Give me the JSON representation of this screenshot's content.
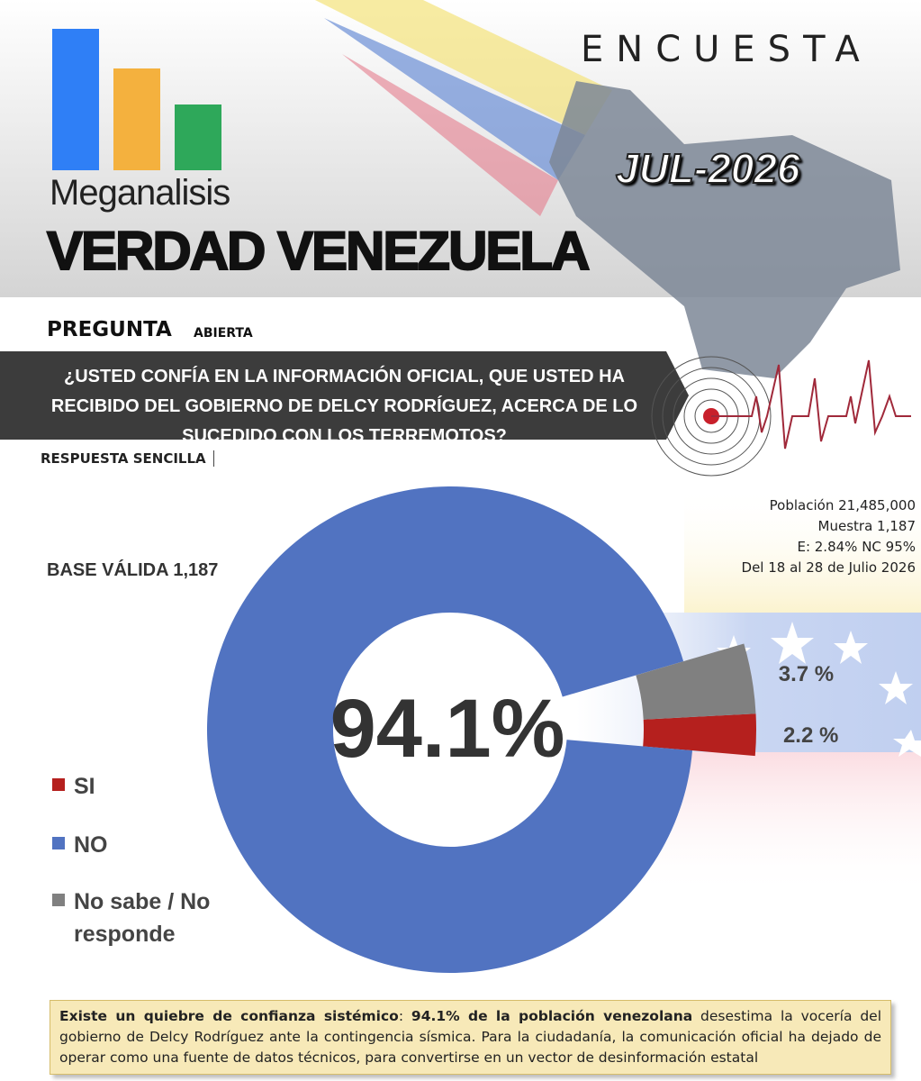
{
  "header": {
    "brand": "Meganalisis",
    "title": "VERDAD VENEZUELA",
    "survey": "ENCUESTA",
    "date": "JUL-2026"
  },
  "question": {
    "label": "PREGUNTA",
    "kind": "ABIERTA",
    "text": "¿USTED CONFÍA EN LA INFORMACIÓN OFICIAL, QUE USTED HA RECIBIDO DEL GOBIERNO DE DELCY RODRÍGUEZ, ACERCA DE LO SUCEDIDO CON LOS TERREMOTOS?",
    "answer_type": "RESPUESTA SENCILLA"
  },
  "methodology": [
    "Población 21,485,000",
    "Muestra 1,187",
    "E: 2.84% NC 95%",
    "Del 18 al 28 de Julio 2026"
  ],
  "base": "BASE VÁLIDA 1,187",
  "chart_data": {
    "type": "pie",
    "categories": [
      "SI",
      "NO",
      "No sabe / No responde"
    ],
    "values": [
      2.2,
      94.1,
      3.7
    ],
    "value_labels": [
      "2.2 %",
      "94.1%",
      "3.7 %"
    ],
    "colors": [
      "#b5201e",
      "#5173c1",
      "#808080"
    ]
  },
  "footer": {
    "segments": [
      {
        "text": "Existe un quiebre de confianza sistémico",
        "bold": true
      },
      {
        "text": ": ",
        "bold": false
      },
      {
        "text": "94.1% de la población venezolana",
        "bold": true
      },
      {
        "text": " desestima la vocería del gobierno de Delcy Rodríguez ante la contingencia sísmica. Para la ciudadanía, la comunicación oficial ha dejado de operar como una fuente de datos técnicos, para convertirse en un vector de desinformación estatal",
        "bold": false
      }
    ]
  }
}
